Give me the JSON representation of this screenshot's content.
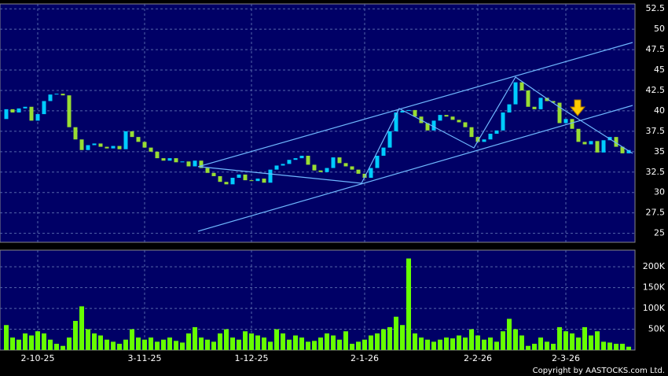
{
  "chart_data": {
    "type": "candlestick",
    "open": [
      39.0,
      40.2,
      39.8,
      40.3,
      40.5,
      38.8,
      39.6,
      41.2,
      42.0,
      42.1,
      41.9,
      38.0,
      36.5,
      35.2,
      35.8,
      36.0,
      35.6,
      35.4,
      35.7,
      35.3,
      37.5,
      36.8,
      36.2,
      35.5,
      35.0,
      34.2,
      33.9,
      34.2,
      33.7,
      33.8,
      33.2,
      33.9,
      33.0,
      32.4,
      32.0,
      31.3,
      31.0,
      31.8,
      32.2,
      31.5,
      31.4,
      31.7,
      31.2,
      32.8,
      33.3,
      33.5,
      34.0,
      34.2,
      34.5,
      33.4,
      32.7,
      32.5,
      33.0,
      34.3,
      33.6,
      33.2,
      32.8,
      32.3,
      31.8,
      33.0,
      34.5,
      35.5,
      37.5,
      39.8,
      40.0,
      40.1,
      39.3,
      38.5,
      37.6,
      38.8,
      39.5,
      39.3,
      38.9,
      38.6,
      38.0,
      36.8,
      36.2,
      36.5,
      37.2,
      37.6,
      39.8,
      40.8,
      43.5,
      42.5,
      40.5,
      40.2,
      41.6,
      41.2,
      41.0,
      38.5,
      39.0,
      37.8,
      36.2,
      35.9,
      36.3,
      34.9,
      36.4,
      36.8,
      35.6,
      34.8
    ],
    "close": [
      40.2,
      39.8,
      40.3,
      40.5,
      38.8,
      39.6,
      41.2,
      42.0,
      42.1,
      41.9,
      38.0,
      36.5,
      35.2,
      35.8,
      36.0,
      35.6,
      35.4,
      35.7,
      35.3,
      37.5,
      36.8,
      36.2,
      35.5,
      35.0,
      34.2,
      33.9,
      34.2,
      33.7,
      33.8,
      33.2,
      33.9,
      33.0,
      32.4,
      32.0,
      31.3,
      31.0,
      31.8,
      32.2,
      31.5,
      31.4,
      31.7,
      31.2,
      32.8,
      33.3,
      33.5,
      34.0,
      34.2,
      34.5,
      33.4,
      32.7,
      32.5,
      33.0,
      34.3,
      33.6,
      33.2,
      32.8,
      32.3,
      31.8,
      33.0,
      34.5,
      35.5,
      37.5,
      39.8,
      40.0,
      40.1,
      39.3,
      38.5,
      37.6,
      38.8,
      39.5,
      39.3,
      38.9,
      38.6,
      38.0,
      36.8,
      36.2,
      36.5,
      37.2,
      37.6,
      39.8,
      40.8,
      43.5,
      42.5,
      40.5,
      40.2,
      41.6,
      41.2,
      41.0,
      38.5,
      39.0,
      37.8,
      36.2,
      35.9,
      36.3,
      34.9,
      36.4,
      36.8,
      35.6,
      34.8,
      35.2
    ],
    "volume": [
      60000,
      30000,
      25000,
      40000,
      35000,
      45000,
      40000,
      25000,
      15000,
      10000,
      30000,
      70000,
      105000,
      50000,
      40000,
      35000,
      25000,
      20000,
      15000,
      25000,
      50000,
      30000,
      25000,
      30000,
      20000,
      25000,
      30000,
      22000,
      18000,
      40000,
      55000,
      30000,
      25000,
      20000,
      40000,
      50000,
      30000,
      25000,
      45000,
      40000,
      35000,
      30000,
      20000,
      50000,
      40000,
      25000,
      35000,
      30000,
      20000,
      22000,
      30000,
      40000,
      35000,
      25000,
      45000,
      15000,
      20000,
      25000,
      35000,
      40000,
      50000,
      55000,
      80000,
      60000,
      220000,
      40000,
      30000,
      25000,
      20000,
      25000,
      30000,
      28000,
      35000,
      30000,
      50000,
      35000,
      25000,
      30000,
      20000,
      45000,
      75000,
      50000,
      35000,
      10000,
      15000,
      30000,
      20000,
      15000,
      55000,
      45000,
      40000,
      30000,
      55000,
      35000,
      45000,
      20000,
      18000,
      15000,
      15000,
      8000
    ],
    "up_color": "#00ccff",
    "down_color": "#99dd33",
    "volume_color": "#66ff00",
    "ylim": [
      23.9,
      53.1
    ],
    "yticks": [
      25,
      27.5,
      30,
      32.5,
      35,
      37.5,
      40,
      42.5,
      45,
      47.5,
      50,
      52.5
    ],
    "volume_ylim": [
      0,
      240000
    ],
    "volume_ticks": [
      {
        "value": 50000,
        "label": "50K"
      },
      {
        "value": 100000,
        "label": "100K"
      },
      {
        "value": 150000,
        "label": "150K"
      },
      {
        "value": 200000,
        "label": "200K"
      }
    ],
    "xticks": [
      {
        "value": 5,
        "label": "2-10-25"
      },
      {
        "value": 22,
        "label": "3-11-25"
      },
      {
        "value": 39,
        "label": "1-12-25"
      },
      {
        "value": 57,
        "label": "2-1-26"
      },
      {
        "value": 75,
        "label": "2-2-26"
      },
      {
        "value": 89,
        "label": "2-3-26"
      }
    ],
    "grid": true,
    "copyright": "Copyright by AASTOCKS.com Ltd."
  }
}
